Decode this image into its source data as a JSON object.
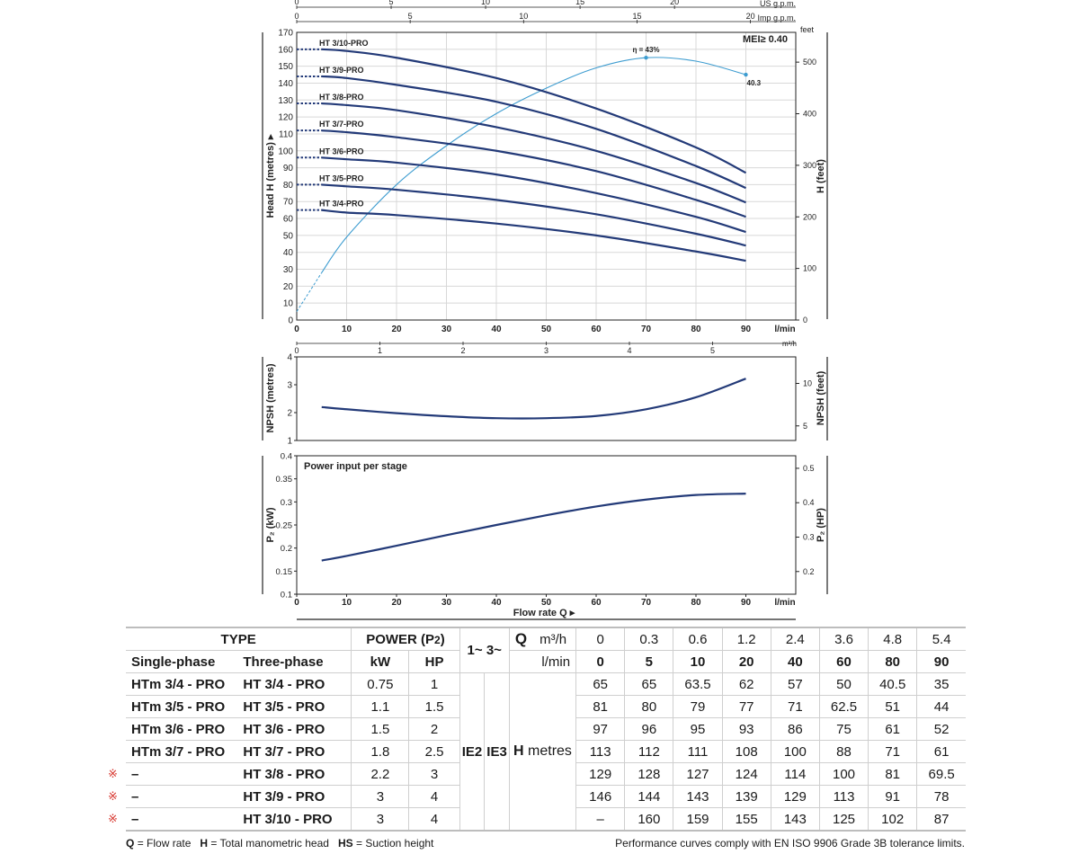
{
  "colors": {
    "curve": "#233a78",
    "efficiency": "#3d9cd0",
    "axis": "#222222",
    "grid": "#d8d8d8",
    "mark": "#d6322a"
  },
  "chart_data": [
    {
      "type": "line",
      "flow_lmin": [
        5,
        10,
        20,
        40,
        60,
        80,
        90
      ],
      "series": [
        {
          "name": "HT 3/10-PRO",
          "values": [
            160,
            159,
            155,
            143,
            125,
            102,
            87
          ]
        },
        {
          "name": "HT 3/9-PRO",
          "values": [
            144,
            143,
            139,
            129,
            113,
            91,
            78
          ]
        },
        {
          "name": "HT 3/8-PRO",
          "values": [
            128,
            127,
            124,
            114,
            100,
            81,
            69.5
          ]
        },
        {
          "name": "HT 3/7-PRO",
          "values": [
            112,
            111,
            108,
            100,
            88,
            71,
            61
          ]
        },
        {
          "name": "HT 3/6-PRO",
          "values": [
            96,
            95,
            93,
            86,
            75,
            61,
            52
          ]
        },
        {
          "name": "HT 3/5-PRO",
          "values": [
            80,
            79,
            77,
            71,
            62.5,
            51,
            44
          ]
        },
        {
          "name": "HT 3/4-PRO",
          "values": [
            65,
            63.5,
            62,
            57,
            50,
            40.5,
            35
          ]
        }
      ],
      "efficiency_curve": {
        "label": "η = 43%",
        "end_label": "40.3",
        "points": [
          [
            0,
            5
          ],
          [
            5,
            28
          ],
          [
            10,
            49
          ],
          [
            20,
            80
          ],
          [
            30,
            103
          ],
          [
            40,
            122
          ],
          [
            50,
            137
          ],
          [
            60,
            149
          ],
          [
            70,
            155
          ],
          [
            80,
            153
          ],
          [
            90,
            145
          ]
        ]
      },
      "mei_label": "MEI≥ 0.40",
      "ylabel": "Head H (metres)",
      "ylabel_right": "H (feet)",
      "right_unit": "feet",
      "xlabel_unit": "l/min",
      "x_ticks": [
        0,
        10,
        20,
        30,
        40,
        50,
        60,
        70,
        80,
        90
      ],
      "y_ticks": [
        0,
        10,
        20,
        30,
        40,
        50,
        60,
        70,
        80,
        90,
        100,
        110,
        120,
        130,
        140,
        150,
        160,
        170
      ],
      "feet_ticks": [
        0,
        100,
        200,
        300,
        400,
        500
      ],
      "ylim": [
        0,
        170
      ],
      "xlim": [
        0,
        100
      ],
      "top_axes": [
        {
          "label": "US g.p.m.",
          "ticks": [
            0,
            5,
            10,
            15,
            20
          ]
        },
        {
          "label": "Imp g.p.m.",
          "ticks": [
            0,
            5,
            10,
            15,
            20
          ]
        }
      ],
      "bottom_axis2": {
        "label": "m³/h",
        "ticks": [
          0,
          1,
          2,
          3,
          4,
          5
        ]
      }
    },
    {
      "type": "line",
      "ylabel": "NPSH (metres)",
      "ylabel_right": "NPSH (feet)",
      "ylim": [
        1,
        4
      ],
      "y_ticks": [
        1,
        2,
        3,
        4
      ],
      "feet_ticks": [
        5,
        10
      ],
      "series": [
        {
          "x": [
            5,
            10,
            20,
            30,
            40,
            50,
            60,
            70,
            80,
            90
          ],
          "values": [
            2.2,
            2.12,
            1.98,
            1.87,
            1.8,
            1.8,
            1.88,
            2.12,
            2.55,
            3.22
          ]
        }
      ]
    },
    {
      "type": "line",
      "title": "Power input per stage",
      "ylabel": "P₂ (kW)",
      "ylabel_right": "P₂ (HP)",
      "ylim": [
        0.1,
        0.4
      ],
      "y_ticks": [
        0.1,
        0.15,
        0.2,
        0.25,
        0.3,
        0.35,
        0.4
      ],
      "hp_ticks": [
        0.2,
        0.3,
        0.4,
        0.5
      ],
      "x_ticks": [
        0,
        10,
        20,
        30,
        40,
        50,
        60,
        70,
        80,
        90
      ],
      "xlabel_unit": "l/min",
      "xlabel": "Flow rate Q",
      "series": [
        {
          "x": [
            5,
            10,
            20,
            30,
            40,
            50,
            60,
            70,
            80,
            90
          ],
          "values": [
            0.173,
            0.183,
            0.205,
            0.228,
            0.25,
            0.271,
            0.29,
            0.305,
            0.315,
            0.318
          ]
        }
      ]
    }
  ],
  "table": {
    "type_header": "TYPE",
    "power_header": "POWER (P2)",
    "q_header": "Q",
    "m3h_label": "m³/h",
    "lmin_label": "l/min",
    "single_phase": "Single-phase",
    "three_phase": "Three-phase",
    "kw": "kW",
    "hp": "HP",
    "phase_1": "1~",
    "phase_3": "3~",
    "ie2": "IE2",
    "ie3": "IE3",
    "h_label": "H",
    "metres_label": "metres",
    "m3h_values": [
      "0",
      "0.3",
      "0.6",
      "1.2",
      "2.4",
      "3.6",
      "4.8",
      "5.4"
    ],
    "lmin_values": [
      "0",
      "5",
      "10",
      "20",
      "40",
      "60",
      "80",
      "90"
    ],
    "mark_symbol": "※",
    "rows": [
      {
        "single": "HTm 3/4 - PRO",
        "three": "HT 3/4 - PRO",
        "kw": "0.75",
        "hp": "1",
        "h": [
          "65",
          "65",
          "63.5",
          "62",
          "57",
          "50",
          "40.5",
          "35"
        ]
      },
      {
        "single": "HTm 3/5 - PRO",
        "three": "HT 3/5 - PRO",
        "kw": "1.1",
        "hp": "1.5",
        "h": [
          "81",
          "80",
          "79",
          "77",
          "71",
          "62.5",
          "51",
          "44"
        ]
      },
      {
        "single": "HTm 3/6 - PRO",
        "three": "HT 3/6 - PRO",
        "kw": "1.5",
        "hp": "2",
        "h": [
          "97",
          "96",
          "95",
          "93",
          "86",
          "75",
          "61",
          "52"
        ]
      },
      {
        "single": "HTm 3/7 - PRO",
        "three": "HT 3/7 - PRO",
        "kw": "1.8",
        "hp": "2.5",
        "h": [
          "113",
          "112",
          "111",
          "108",
          "100",
          "88",
          "71",
          "61"
        ]
      },
      {
        "single": "–",
        "three": "HT 3/8 - PRO",
        "kw": "2.2",
        "hp": "3",
        "h": [
          "129",
          "128",
          "127",
          "124",
          "114",
          "100",
          "81",
          "69.5"
        ]
      },
      {
        "single": "–",
        "three": "HT 3/9 - PRO",
        "kw": "3",
        "hp": "4",
        "h": [
          "146",
          "144",
          "143",
          "139",
          "129",
          "113",
          "91",
          "78"
        ]
      },
      {
        "single": "–",
        "three": "HT 3/10 - PRO",
        "kw": "3",
        "hp": "4",
        "h": [
          "–",
          "160",
          "159",
          "155",
          "143",
          "125",
          "102",
          "87"
        ]
      }
    ]
  },
  "footer": {
    "q_key": "Q",
    "q_text": "= Flow rate",
    "h_key": "H",
    "h_text": "= Total manometric head",
    "hs_key": "HS",
    "hs_text": "= Suction height",
    "note": "Performance curves comply with EN ISO 9906 Grade 3B tolerance limits."
  }
}
